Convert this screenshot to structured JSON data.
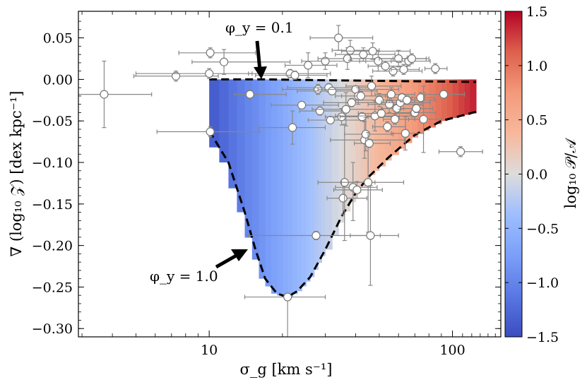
{
  "chart_data": {
    "type": "scatter",
    "title": "",
    "xlabel": "σ_g [km s⁻¹]",
    "ylabel": "∇ (log₁₀ 𝒵)  [dex kpc⁻¹]",
    "xscale": "log",
    "xlim": [
      2.9,
      158
    ],
    "ylim": [
      -0.31,
      0.082
    ],
    "xticks": [
      10,
      100
    ],
    "xtick_labels": [
      "10",
      "100"
    ],
    "yticks": [
      0.05,
      0.0,
      -0.05,
      -0.1,
      -0.15,
      -0.2,
      -0.25,
      -0.3
    ],
    "ytick_labels": [
      "0.05",
      "0.00",
      "−0.05",
      "−0.10",
      "−0.15",
      "−0.20",
      "−0.25",
      "−0.30"
    ],
    "grid": false,
    "colorbar": {
      "label": "log₁₀ 𝒫/𝒜",
      "range": [
        -1.5,
        1.5
      ],
      "ticks": [
        1.5,
        1.0,
        0.5,
        0.0,
        -0.5,
        -1.0,
        -1.5
      ],
      "tick_labels": [
        "1.5",
        "1.0",
        "0.5",
        "0.0",
        "−0.5",
        "−1.0",
        "−1.5"
      ],
      "colormap": "coolwarm"
    },
    "annotations": [
      {
        "text": "φ_y = 0.1",
        "points_to": [
          16.5,
          0.0
        ]
      },
      {
        "text": "φ_y = 1.0",
        "points_to": [
          15.0,
          -0.205
        ]
      }
    ],
    "curves": [
      {
        "name": "φ_y = 0.1",
        "style": "dashed",
        "x": [
          10,
          17,
          30,
          60,
          125
        ],
        "y": [
          0.0,
          0.0,
          -0.001,
          -0.002,
          -0.003
        ]
      },
      {
        "name": "φ_y = 1.0",
        "style": "dashed",
        "x": [
          10,
          12,
          14,
          15.5,
          17,
          19,
          21,
          23,
          26,
          30,
          35,
          40,
          45,
          55,
          70,
          90,
          125
        ],
        "y": [
          -0.062,
          -0.1,
          -0.16,
          -0.205,
          -0.24,
          -0.258,
          -0.262,
          -0.255,
          -0.238,
          -0.205,
          -0.165,
          -0.137,
          -0.118,
          -0.093,
          -0.067,
          -0.05,
          -0.039
        ]
      }
    ],
    "heatmap": {
      "x_edges": [
        10,
        11,
        12,
        13,
        14,
        15,
        16,
        17,
        18,
        19,
        20,
        21,
        22,
        23,
        24,
        25,
        26,
        27,
        28,
        29,
        30,
        32,
        34,
        36,
        38,
        40,
        42,
        44,
        46,
        48,
        50,
        53,
        56,
        60,
        64,
        68,
        72,
        76,
        80,
        85,
        90,
        95,
        100,
        106,
        112,
        118,
        125
      ],
      "y_top": 0.0,
      "value_min": -1.4,
      "value_max": 1.4
    },
    "points": [
      {
        "x": 3.7,
        "y": -0.018,
        "xerr": [
          0.8,
          2.1
        ],
        "yerr": [
          0.04,
          0.04
        ]
      },
      {
        "x": 7.3,
        "y": 0.004,
        "xerr": [
          2.4,
          3.6
        ],
        "yerr": [
          0.006,
          0.006
        ]
      },
      {
        "x": 10,
        "y": 0.007,
        "xerr": [
          5,
          5
        ],
        "yerr": [
          0.006,
          0.006
        ]
      },
      {
        "x": 10.1,
        "y": 0.032,
        "xerr": [
          2.6,
          5.4
        ],
        "yerr": [
          0.006,
          0.006
        ]
      },
      {
        "x": 10.1,
        "y": -0.063,
        "xerr": [
          4,
          6
        ],
        "yerr": [
          0.006,
          0.006
        ]
      },
      {
        "x": 11.5,
        "y": 0.021,
        "xerr": [
          3,
          10
        ],
        "yerr": [
          0.015,
          0.015
        ]
      },
      {
        "x": 14.7,
        "y": -0.018,
        "xerr": [
          2,
          6
        ],
        "yerr": [
          0.005,
          0.005
        ]
      },
      {
        "x": 21,
        "y": -0.262,
        "xerr": [
          7,
          9
        ],
        "yerr": [
          0.08,
          0.002
        ]
      },
      {
        "x": 21.5,
        "y": 0.007,
        "xerr": [
          7,
          10
        ],
        "yerr": [
          0.005,
          0.005
        ]
      },
      {
        "x": 22,
        "y": -0.058,
        "xerr": [
          6,
          8
        ],
        "yerr": [
          0.02,
          0.02
        ]
      },
      {
        "x": 22.5,
        "y": 0.005,
        "xerr": [
          7,
          8
        ],
        "yerr": [
          0.005,
          0.005
        ]
      },
      {
        "x": 24,
        "y": -0.031,
        "xerr": [
          6,
          10
        ],
        "yerr": [
          0.004,
          0.004
        ]
      },
      {
        "x": 25.5,
        "y": 0.017,
        "xerr": [
          5,
          8
        ],
        "yerr": [
          0.015,
          0.015
        ]
      },
      {
        "x": 27.5,
        "y": -0.188,
        "xerr": [
          13,
          23
        ],
        "yerr": [
          0.005,
          0.005
        ]
      },
      {
        "x": 28,
        "y": -0.012,
        "xerr": [
          8,
          12
        ],
        "yerr": [
          0.006,
          0.006
        ]
      },
      {
        "x": 28.5,
        "y": -0.038,
        "xerr": [
          5,
          8
        ],
        "yerr": [
          0.005,
          0.005
        ]
      },
      {
        "x": 30,
        "y": 0.022,
        "xerr": [
          6,
          14
        ],
        "yerr": [
          0.01,
          0.01
        ]
      },
      {
        "x": 31,
        "y": -0.01,
        "xerr": [
          10,
          15
        ],
        "yerr": [
          0.005,
          0.005
        ]
      },
      {
        "x": 31.5,
        "y": -0.049,
        "xerr": [
          6,
          12
        ],
        "yerr": [
          0.004,
          0.004
        ]
      },
      {
        "x": 32,
        "y": -0.014,
        "xerr": [
          9,
          17
        ],
        "yerr": [
          0.004,
          0.004
        ]
      },
      {
        "x": 34,
        "y": 0.05,
        "xerr": [
          8,
          13
        ],
        "yerr": [
          0.015,
          0.015
        ]
      },
      {
        "x": 35,
        "y": -0.045,
        "xerr": [
          5,
          10
        ],
        "yerr": [
          0.01,
          0.01
        ]
      },
      {
        "x": 35.5,
        "y": -0.143,
        "xerr": [
          5,
          9
        ],
        "yerr": [
          0.02,
          0.02
        ]
      },
      {
        "x": 36,
        "y": -0.124,
        "xerr": [
          8,
          12
        ],
        "yerr": [
          0.07,
          0.07
        ]
      },
      {
        "x": 36.5,
        "y": -0.036,
        "xerr": [
          10,
          15
        ],
        "yerr": [
          0.02,
          0.02
        ]
      },
      {
        "x": 37,
        "y": 0.025,
        "xerr": [
          9,
          20
        ],
        "yerr": [
          0.013,
          0.013
        ]
      },
      {
        "x": 38,
        "y": 0.035,
        "xerr": [
          6,
          12
        ],
        "yerr": [
          0.012,
          0.012
        ]
      },
      {
        "x": 38.5,
        "y": -0.028,
        "xerr": [
          9,
          15
        ],
        "yerr": [
          0.005,
          0.005
        ]
      },
      {
        "x": 39,
        "y": -0.13,
        "xerr": [
          6,
          10
        ],
        "yerr": [
          0.04,
          0.03
        ]
      },
      {
        "x": 40,
        "y": -0.012,
        "xerr": [
          12,
          20
        ],
        "yerr": [
          0.003,
          0.003
        ]
      },
      {
        "x": 40.5,
        "y": -0.133,
        "xerr": [
          8,
          11
        ],
        "yerr": [
          0.01,
          0.01
        ]
      },
      {
        "x": 41,
        "y": -0.02,
        "xerr": [
          8,
          14
        ],
        "yerr": [
          0.01,
          0.01
        ]
      },
      {
        "x": 42,
        "y": -0.02,
        "xerr": [
          7,
          11
        ],
        "yerr": [
          0.005,
          0.005
        ]
      },
      {
        "x": 42.5,
        "y": -0.045,
        "xerr": [
          8,
          18
        ],
        "yerr": [
          0.005,
          0.005
        ]
      },
      {
        "x": 43,
        "y": 0.03,
        "xerr": [
          10,
          15
        ],
        "yerr": [
          0.008,
          0.008
        ]
      },
      {
        "x": 43.5,
        "y": -0.073,
        "xerr": [
          12,
          20
        ],
        "yerr": [
          0.022,
          0.022
        ]
      },
      {
        "x": 44,
        "y": -0.066,
        "xerr": [
          8,
          13
        ],
        "yerr": [
          0.02,
          0.02
        ]
      },
      {
        "x": 45,
        "y": -0.124,
        "xerr": [
          10,
          18
        ],
        "yerr": [
          0.06,
          0.06
        ]
      },
      {
        "x": 45.5,
        "y": -0.077,
        "xerr": [
          6,
          10
        ],
        "yerr": [
          0.005,
          0.005
        ]
      },
      {
        "x": 46,
        "y": -0.188,
        "xerr": [
          8,
          14
        ],
        "yerr": [
          0.06,
          0.06
        ]
      },
      {
        "x": 46.5,
        "y": -0.008,
        "xerr": [
          10,
          15
        ],
        "yerr": [
          0.012,
          0.012
        ]
      },
      {
        "x": 47,
        "y": 0.034,
        "xerr": [
          12,
          20
        ],
        "yerr": [
          0.01,
          0.01
        ]
      },
      {
        "x": 48,
        "y": -0.044,
        "xerr": [
          15,
          20
        ],
        "yerr": [
          0.018,
          0.018
        ]
      },
      {
        "x": 49.5,
        "y": 0.022,
        "xerr": [
          8,
          12
        ],
        "yerr": [
          0.012,
          0.012
        ]
      },
      {
        "x": 50,
        "y": -0.025,
        "xerr": [
          10,
          20
        ],
        "yerr": [
          0.008,
          0.008
        ]
      },
      {
        "x": 51,
        "y": -0.041,
        "xerr": [
          10,
          16
        ],
        "yerr": [
          0.005,
          0.005
        ]
      },
      {
        "x": 53,
        "y": 0.016,
        "xerr": [
          8,
          12
        ],
        "yerr": [
          0.006,
          0.006
        ]
      },
      {
        "x": 54,
        "y": -0.057,
        "xerr": [
          7,
          10
        ],
        "yerr": [
          0.006,
          0.006
        ]
      },
      {
        "x": 55,
        "y": -0.03,
        "xerr": [
          10,
          20
        ],
        "yerr": [
          0.01,
          0.01
        ]
      },
      {
        "x": 56,
        "y": -0.018,
        "xerr": [
          8,
          14
        ],
        "yerr": [
          0.008,
          0.008
        ]
      },
      {
        "x": 57,
        "y": 0.01,
        "xerr": [
          10,
          18
        ],
        "yerr": [
          0.006,
          0.006
        ]
      },
      {
        "x": 58,
        "y": -0.048,
        "xerr": [
          6,
          12
        ],
        "yerr": [
          0.006,
          0.006
        ]
      },
      {
        "x": 59,
        "y": -0.035,
        "xerr": [
          8,
          12
        ],
        "yerr": [
          0.005,
          0.005
        ]
      },
      {
        "x": 60,
        "y": 0.025,
        "xerr": [
          10,
          20
        ],
        "yerr": [
          0.01,
          0.01
        ]
      },
      {
        "x": 61,
        "y": -0.028,
        "xerr": [
          10,
          20
        ],
        "yerr": [
          0.008,
          0.008
        ]
      },
      {
        "x": 62,
        "y": -0.022,
        "xerr": [
          8,
          12
        ],
        "yerr": [
          0.005,
          0.005
        ]
      },
      {
        "x": 63,
        "y": 0.012,
        "xerr": [
          7,
          10
        ],
        "yerr": [
          0.006,
          0.006
        ]
      },
      {
        "x": 64,
        "y": -0.065,
        "xerr": [
          8,
          12
        ],
        "yerr": [
          0.02,
          0.02
        ]
      },
      {
        "x": 65,
        "y": -0.025,
        "xerr": [
          10,
          20
        ],
        "yerr": [
          0.005,
          0.005
        ]
      },
      {
        "x": 66,
        "y": 0.022,
        "xerr": [
          10,
          15
        ],
        "yerr": [
          0.006,
          0.006
        ]
      },
      {
        "x": 68,
        "y": 0.025,
        "xerr": [
          6,
          10
        ],
        "yerr": [
          0.006,
          0.006
        ]
      },
      {
        "x": 70,
        "y": -0.04,
        "xerr": [
          12,
          15
        ],
        "yerr": [
          0.005,
          0.005
        ]
      },
      {
        "x": 71,
        "y": -0.035,
        "xerr": [
          8,
          12
        ],
        "yerr": [
          0.005,
          0.005
        ]
      },
      {
        "x": 74,
        "y": -0.022,
        "xerr": [
          6,
          10
        ],
        "yerr": [
          0.006,
          0.006
        ]
      },
      {
        "x": 76,
        "y": -0.048,
        "xerr": [
          10,
          14
        ],
        "yerr": [
          0.04,
          0.04
        ]
      },
      {
        "x": 85,
        "y": 0.013,
        "xerr": [
          8,
          10
        ],
        "yerr": [
          0.006,
          0.006
        ]
      },
      {
        "x": 92,
        "y": -0.018,
        "xerr": [
          15,
          20
        ],
        "yerr": [
          0.006,
          0.006
        ]
      },
      {
        "x": 108,
        "y": -0.087,
        "xerr": [
          20,
          25
        ],
        "yerr": [
          0.006,
          0.006
        ]
      }
    ]
  }
}
